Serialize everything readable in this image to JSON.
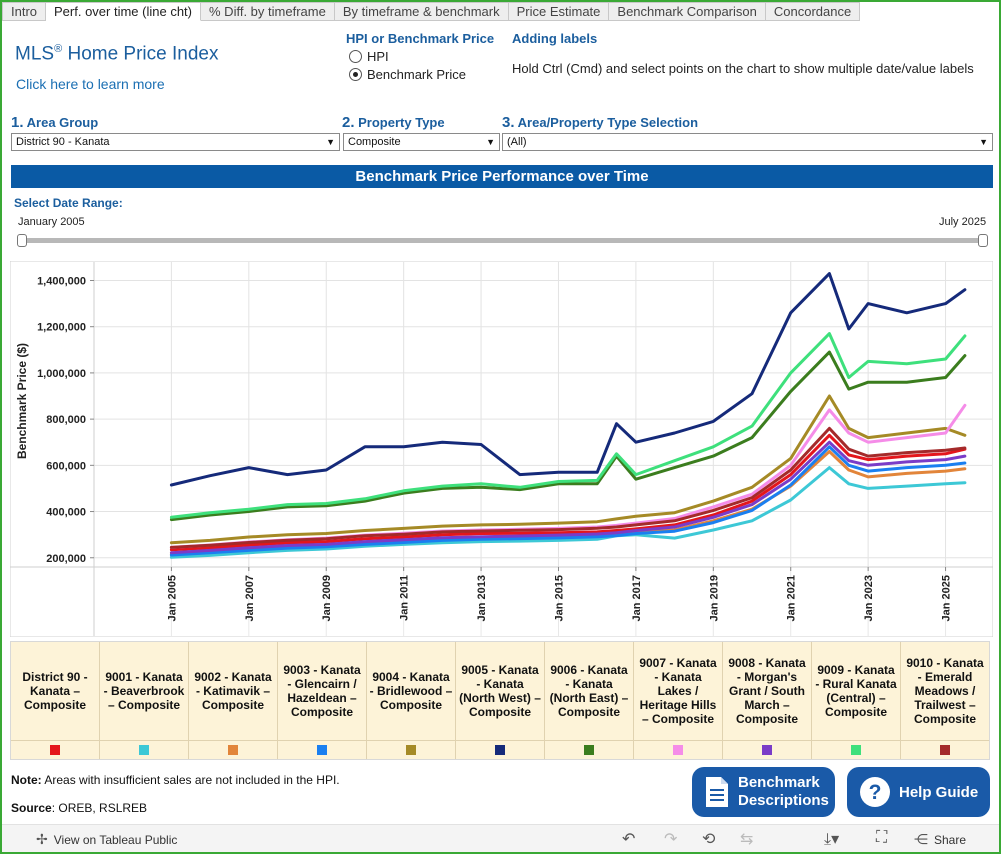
{
  "tabs": [
    "Intro",
    "Perf. over time (line cht)",
    "% Diff. by timeframe",
    "By timeframe & benchmark",
    "Price Estimate",
    "Benchmark Comparison",
    "Concordance"
  ],
  "header": {
    "title": "MLS",
    "title_rest": " Home Price Index",
    "learn_more": "Click here to learn more"
  },
  "radio": {
    "heading": "HPI or Benchmark Price",
    "options": [
      "HPI",
      "Benchmark Price"
    ],
    "selected": "Benchmark Price"
  },
  "labels_help": {
    "heading": "Adding labels",
    "text": "Hold Ctrl (Cmd) and select points on the chart to show multiple date/value labels"
  },
  "filters": {
    "area_group": {
      "num": "1.",
      "label": "Area Group",
      "value": "District 90 - Kanata"
    },
    "property_type": {
      "num": "2.",
      "label": "Property Type",
      "value": "Composite"
    },
    "selection": {
      "num": "3.",
      "label": "Area/Property Type Selection",
      "value": "(All)"
    }
  },
  "banner": "Benchmark Price Performance over Time",
  "date_range": {
    "heading": "Select Date Range:",
    "start": "January 2005",
    "end": "July 2025"
  },
  "legend": [
    {
      "label": "District 90 - Kanata – Composite",
      "color": "#e4161c"
    },
    {
      "label": "9001 - Kanata - Beaverbrook – Composite",
      "color": "#3dc8d6"
    },
    {
      "label": "9002 - Kanata - Katimavik – Composite",
      "color": "#e2853a"
    },
    {
      "label": "9003 - Kanata - Glencairn / Hazeldean – Composite",
      "color": "#1a7ff0"
    },
    {
      "label": "9004 - Kanata - Bridlewood – Composite",
      "color": "#a58a26"
    },
    {
      "label": "9005 - Kanata - Kanata (North West) – Composite",
      "color": "#152a7a"
    },
    {
      "label": "9006 - Kanata - Kanata (North East) – Composite",
      "color": "#3b7d1e"
    },
    {
      "label": "9007 - Kanata - Kanata Lakes / Heritage Hills – Composite",
      "color": "#f58ce8"
    },
    {
      "label": "9008 - Kanata - Morgan's Grant / South March – Composite",
      "color": "#7a3cc8"
    },
    {
      "label": "9009 - Kanata - Rural Kanata (Central) – Composite",
      "color": "#3ee07c"
    },
    {
      "label": "9010 - Kanata - Emerald Meadows / Trailwest – Composite",
      "color": "#a42a2a"
    }
  ],
  "note": {
    "label": "Note:",
    "text": " Areas with insufficient sales are not included in the HPI."
  },
  "source": {
    "label": "Source",
    "text": ": OREB, RSLREB"
  },
  "buttons": {
    "benchmark": [
      "Benchmark",
      "Descriptions"
    ],
    "help": "Help Guide"
  },
  "footer": {
    "view": "View on Tableau Public",
    "share": "Share"
  },
  "chart_data": {
    "type": "line",
    "title": "Benchmark Price Performance over Time",
    "xlabel": "",
    "ylabel": "Benchmark Price ($)",
    "ylim": [
      160000,
      1480000
    ],
    "xlim": [
      2003.0,
      2026.2
    ],
    "yticks": [
      200000,
      400000,
      600000,
      800000,
      1000000,
      1200000,
      1400000
    ],
    "ytick_labels": [
      "200,000",
      "400,000",
      "600,000",
      "800,000",
      "1,000,000",
      "1,200,000",
      "1,400,000"
    ],
    "xticks": [
      2005,
      2007,
      2009,
      2011,
      2013,
      2015,
      2017,
      2019,
      2021,
      2023,
      2025
    ],
    "xtick_labels": [
      "Jan 2005",
      "Jan 2007",
      "Jan 2009",
      "Jan 2011",
      "Jan 2013",
      "Jan 2015",
      "Jan 2017",
      "Jan 2019",
      "Jan 2021",
      "Jan 2023",
      "Jan 2025"
    ],
    "x": [
      2005,
      2006,
      2007,
      2008,
      2009,
      2010,
      2011,
      2012,
      2013,
      2014,
      2015,
      2016,
      2016.5,
      2017,
      2018,
      2019,
      2020,
      2021,
      2022,
      2022.5,
      2023,
      2024,
      2025,
      2025.5
    ],
    "series": [
      {
        "name": "District 90 - Kanata – Composite",
        "color": "#e4161c",
        "values": [
          235000,
          243000,
          255000,
          265000,
          270000,
          282000,
          290000,
          300000,
          305000,
          306000,
          308000,
          312000,
          318000,
          325000,
          342000,
          385000,
          445000,
          560000,
          730000,
          645000,
          625000,
          640000,
          650000,
          670000
        ]
      },
      {
        "name": "9001 - Kanata - Beaverbrook – Composite",
        "color": "#3dc8d6",
        "values": [
          202000,
          210000,
          222000,
          232000,
          238000,
          250000,
          258000,
          265000,
          270000,
          272000,
          275000,
          280000,
          295000,
          300000,
          285000,
          320000,
          360000,
          450000,
          590000,
          520000,
          500000,
          510000,
          520000,
          525000
        ]
      },
      {
        "name": "9002 - Kanata - Katimavik – Composite",
        "color": "#e2853a",
        "values": [
          215000,
          225000,
          235000,
          245000,
          250000,
          262000,
          270000,
          280000,
          285000,
          288000,
          292000,
          298000,
          302000,
          310000,
          320000,
          360000,
          410000,
          510000,
          660000,
          580000,
          550000,
          565000,
          575000,
          585000
        ]
      },
      {
        "name": "9003 - Kanata - Glencairn / Hazeldean – Composite",
        "color": "#1a7ff0",
        "values": [
          212000,
          222000,
          232000,
          242000,
          248000,
          258000,
          266000,
          275000,
          280000,
          283000,
          286000,
          291000,
          296000,
          305000,
          315000,
          352000,
          405000,
          515000,
          680000,
          600000,
          575000,
          590000,
          600000,
          610000
        ]
      },
      {
        "name": "9004 - Kanata - Bridlewood – Composite",
        "color": "#a58a26",
        "values": [
          265000,
          275000,
          290000,
          300000,
          305000,
          318000,
          327000,
          337000,
          342000,
          345000,
          350000,
          356000,
          368000,
          380000,
          395000,
          445000,
          505000,
          630000,
          900000,
          760000,
          720000,
          740000,
          760000,
          730000
        ]
      },
      {
        "name": "9005 - Kanata - Kanata (North West) – Composite",
        "color": "#152a7a",
        "values": [
          515000,
          555000,
          590000,
          560000,
          580000,
          680000,
          680000,
          700000,
          690000,
          560000,
          570000,
          570000,
          780000,
          700000,
          740000,
          790000,
          910000,
          1260000,
          1430000,
          1190000,
          1300000,
          1260000,
          1300000,
          1360000
        ]
      },
      {
        "name": "9006 - Kanata - Kanata (North East) – Composite",
        "color": "#3b7d1e",
        "values": [
          365000,
          385000,
          400000,
          420000,
          425000,
          445000,
          480000,
          500000,
          505000,
          495000,
          520000,
          520000,
          640000,
          540000,
          590000,
          640000,
          720000,
          920000,
          1090000,
          930000,
          960000,
          960000,
          980000,
          1075000
        ]
      },
      {
        "name": "9007 - Kanata - Kanata Lakes / Heritage Hills – Composite",
        "color": "#f58ce8",
        "values": [
          245000,
          255000,
          268000,
          278000,
          285000,
          298000,
          306000,
          316000,
          320000,
          323000,
          327000,
          333000,
          340000,
          350000,
          370000,
          420000,
          475000,
          600000,
          840000,
          740000,
          700000,
          720000,
          740000,
          860000
        ]
      },
      {
        "name": "9008 - Kanata - Morgan's Grant / South March – Composite",
        "color": "#7a3cc8",
        "values": [
          222000,
          232000,
          243000,
          253000,
          258000,
          270000,
          278000,
          287000,
          291000,
          294000,
          298000,
          303000,
          308000,
          318000,
          333000,
          375000,
          430000,
          540000,
          700000,
          620000,
          600000,
          615000,
          625000,
          640000
        ]
      },
      {
        "name": "9009 - Kanata - Rural Kanata (Central) – Composite",
        "color": "#3ee07c",
        "values": [
          375000,
          395000,
          410000,
          430000,
          435000,
          455000,
          490000,
          510000,
          520000,
          505000,
          530000,
          535000,
          650000,
          560000,
          620000,
          680000,
          770000,
          1000000,
          1170000,
          980000,
          1050000,
          1040000,
          1060000,
          1160000
        ]
      },
      {
        "name": "9010 - Kanata - Emerald Meadows / Trailwest – Composite",
        "color": "#a42a2a",
        "values": [
          245000,
          254000,
          266000,
          276000,
          282000,
          295000,
          302000,
          312000,
          316000,
          319000,
          322000,
          328000,
          333000,
          342000,
          360000,
          405000,
          460000,
          580000,
          760000,
          670000,
          640000,
          655000,
          665000,
          675000
        ]
      }
    ]
  }
}
